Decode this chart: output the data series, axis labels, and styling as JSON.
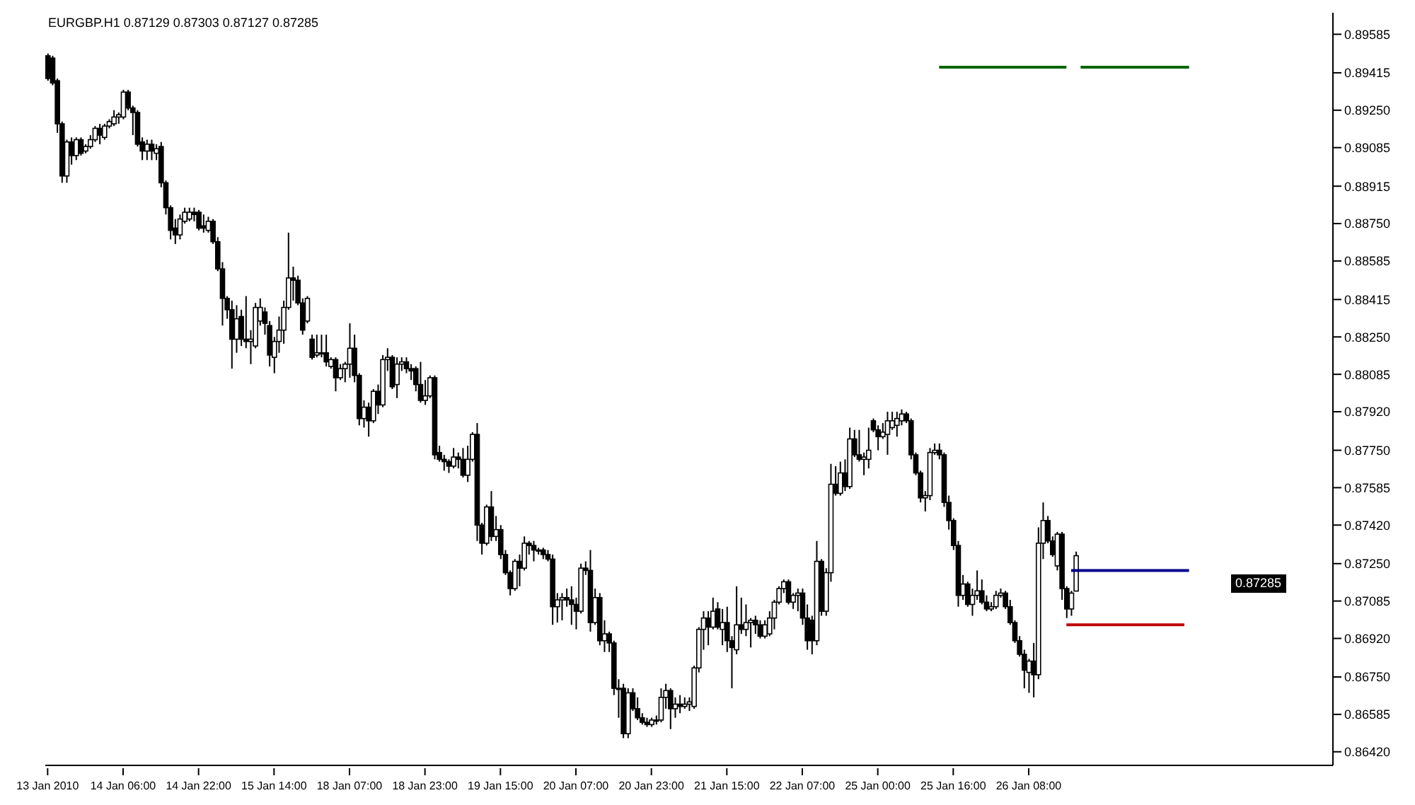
{
  "chart_data": {
    "type": "candlestick",
    "title": "EURGBP.H1 0.87129 0.87303 0.87127 0.87285",
    "color": "#000000",
    "categories": [
      "13 Jan 2010",
      null,
      null,
      null,
      null,
      null,
      null,
      null,
      null,
      null,
      null,
      null,
      null,
      null,
      null,
      null,
      "14 Jan 06:00",
      null,
      null,
      null,
      null,
      null,
      null,
      null,
      null,
      null,
      null,
      null,
      null,
      null,
      null,
      null,
      "14 Jan 22:00",
      null,
      null,
      null,
      null,
      null,
      null,
      null,
      null,
      null,
      null,
      null,
      null,
      null,
      null,
      null,
      "15 Jan 14:00",
      null,
      null,
      null,
      null,
      null,
      null,
      null,
      null,
      null,
      null,
      null,
      null,
      null,
      null,
      null,
      "18 Jan 07:00",
      null,
      null,
      null,
      null,
      null,
      null,
      null,
      null,
      null,
      null,
      null,
      null,
      null,
      null,
      null,
      "18 Jan 23:00",
      null,
      null,
      null,
      null,
      null,
      null,
      null,
      null,
      null,
      null,
      null,
      null,
      null,
      null,
      null,
      "19 Jan 15:00",
      null,
      null,
      null,
      null,
      null,
      null,
      null,
      null,
      null,
      null,
      null,
      null,
      null,
      null,
      null,
      "20 Jan 07:00",
      null,
      null,
      null,
      null,
      null,
      null,
      null,
      null,
      null,
      null,
      null,
      null,
      null,
      null,
      null,
      "20 Jan 23:00",
      null,
      null,
      null,
      null,
      null,
      null,
      null,
      null,
      null,
      null,
      null,
      null,
      null,
      null,
      null,
      "21 Jan 15:00",
      null,
      null,
      null,
      null,
      null,
      null,
      null,
      null,
      null,
      null,
      null,
      null,
      null,
      null,
      null,
      "22 Jan 07:00",
      null,
      null,
      null,
      null,
      null,
      null,
      null,
      null,
      null,
      null,
      null,
      null,
      null,
      null,
      null,
      "25 Jan 00:00",
      null,
      null,
      null,
      null,
      null,
      null,
      null,
      null,
      null,
      null,
      null,
      null,
      null,
      null,
      null,
      "25 Jan 16:00",
      null,
      null,
      null,
      null,
      null,
      null,
      null,
      null,
      null,
      null,
      null,
      null,
      null,
      null,
      null,
      "26 Jan 08:00",
      null,
      null,
      null,
      null,
      null,
      null,
      null,
      null,
      null,
      null,
      null,
      null,
      null,
      null,
      null,
      null,
      null,
      null,
      null,
      null,
      null,
      null,
      null,
      null,
      null,
      null,
      null,
      null,
      null,
      null,
      null,
      null,
      null,
      null,
      null,
      null,
      null,
      null,
      null,
      null,
      null,
      null,
      null,
      null,
      null,
      null,
      null,
      null,
      null,
      null,
      null,
      null,
      null,
      null,
      null,
      null,
      null,
      null,
      null,
      null,
      null,
      null,
      null,
      null
    ],
    "ohlc": [
      [
        0.8949,
        0.895,
        0.8938,
        0.8939
      ],
      [
        0.8948,
        0.8949,
        0.8936,
        0.8937
      ],
      [
        0.8938,
        0.8939,
        0.8915,
        0.8919
      ],
      [
        0.8919,
        0.892,
        0.8893,
        0.8896
      ],
      [
        0.8896,
        0.8912,
        0.8893,
        0.8911
      ],
      [
        0.8911,
        0.8913,
        0.8901,
        0.8905
      ],
      [
        0.8905,
        0.8913,
        0.8903,
        0.8912
      ],
      [
        0.8912,
        0.8913,
        0.8905,
        0.8906
      ],
      [
        0.8907,
        0.891,
        0.8906,
        0.8909
      ],
      [
        0.8909,
        0.8914,
        0.8908,
        0.8912
      ],
      [
        0.8912,
        0.8918,
        0.8911,
        0.8917
      ],
      [
        0.8917,
        0.8919,
        0.891,
        0.8914
      ],
      [
        0.8913,
        0.8919,
        0.8912,
        0.8918
      ],
      [
        0.8918,
        0.8921,
        0.8917,
        0.892
      ],
      [
        0.8919,
        0.8925,
        0.8918,
        0.8922
      ],
      [
        0.8922,
        0.8924,
        0.8919,
        0.8923
      ],
      [
        0.8922,
        0.8934,
        0.8921,
        0.8933
      ],
      [
        0.8933,
        0.8934,
        0.8925,
        0.8926
      ],
      [
        0.8926,
        0.8927,
        0.8914,
        0.8924
      ],
      [
        0.8924,
        0.8925,
        0.8909,
        0.891
      ],
      [
        0.8911,
        0.8913,
        0.8903,
        0.8907
      ],
      [
        0.8907,
        0.8912,
        0.8903,
        0.891
      ],
      [
        0.891,
        0.8912,
        0.8903,
        0.8907
      ],
      [
        0.8906,
        0.891,
        0.8903,
        0.8908
      ],
      [
        0.8909,
        0.8911,
        0.8891,
        0.8893
      ],
      [
        0.8893,
        0.8894,
        0.8879,
        0.8882
      ],
      [
        0.8882,
        0.8883,
        0.8868,
        0.8872
      ],
      [
        0.8873,
        0.8877,
        0.8866,
        0.887
      ],
      [
        0.887,
        0.8879,
        0.8868,
        0.8877
      ],
      [
        0.8876,
        0.8882,
        0.8875,
        0.888
      ],
      [
        0.8877,
        0.8882,
        0.8876,
        0.888
      ],
      [
        0.888,
        0.8882,
        0.8876,
        0.8879
      ],
      [
        0.888,
        0.8881,
        0.8872,
        0.8873
      ],
      [
        0.8874,
        0.8879,
        0.8871,
        0.8873
      ],
      [
        0.8872,
        0.8878,
        0.8871,
        0.8876
      ],
      [
        0.8876,
        0.8877,
        0.8866,
        0.8867
      ],
      [
        0.8867,
        0.8869,
        0.8854,
        0.8855
      ],
      [
        0.8855,
        0.8858,
        0.883,
        0.8842
      ],
      [
        0.8842,
        0.8843,
        0.8833,
        0.8837
      ],
      [
        0.8837,
        0.8841,
        0.8811,
        0.8824
      ],
      [
        0.8824,
        0.8839,
        0.8818,
        0.8833
      ],
      [
        0.8834,
        0.8837,
        0.8821,
        0.8824
      ],
      [
        0.8824,
        0.8843,
        0.882,
        0.8823
      ],
      [
        0.8823,
        0.8828,
        0.8813,
        0.8824
      ],
      [
        0.8821,
        0.884,
        0.882,
        0.8838
      ],
      [
        0.8832,
        0.8842,
        0.883,
        0.8838
      ],
      [
        0.8836,
        0.8838,
        0.8826,
        0.8831
      ],
      [
        0.883,
        0.8832,
        0.8812,
        0.8817
      ],
      [
        0.8816,
        0.8825,
        0.8809,
        0.8823
      ],
      [
        0.8823,
        0.8834,
        0.8818,
        0.8828
      ],
      [
        0.8828,
        0.8841,
        0.8822,
        0.8838
      ],
      [
        0.8838,
        0.8871,
        0.8837,
        0.8851
      ],
      [
        0.8851,
        0.8856,
        0.8841,
        0.885
      ],
      [
        0.885,
        0.8852,
        0.8839,
        0.884
      ],
      [
        0.884,
        0.8842,
        0.8826,
        0.8828
      ],
      [
        0.8832,
        0.8843,
        0.8831,
        0.8842
      ],
      [
        0.8824,
        0.8826,
        0.8815,
        0.8816
      ],
      [
        0.8817,
        0.8826,
        0.8816,
        0.8818
      ],
      [
        0.8818,
        0.8826,
        0.8816,
        0.8818
      ],
      [
        0.8818,
        0.8826,
        0.8812,
        0.8814
      ],
      [
        0.8812,
        0.8816,
        0.8811,
        0.8815
      ],
      [
        0.8815,
        0.8816,
        0.8801,
        0.8807
      ],
      [
        0.8807,
        0.8813,
        0.8806,
        0.8811
      ],
      [
        0.8811,
        0.8814,
        0.8805,
        0.8813
      ],
      [
        0.8813,
        0.8831,
        0.8807,
        0.882
      ],
      [
        0.882,
        0.8826,
        0.8805,
        0.8808
      ],
      [
        0.8808,
        0.8809,
        0.8786,
        0.8789
      ],
      [
        0.8789,
        0.8797,
        0.8785,
        0.8794
      ],
      [
        0.8794,
        0.8796,
        0.8781,
        0.8788
      ],
      [
        0.8788,
        0.8802,
        0.8787,
        0.8801
      ],
      [
        0.8801,
        0.8804,
        0.8791,
        0.8795
      ],
      [
        0.8795,
        0.8817,
        0.8794,
        0.8815
      ],
      [
        0.8815,
        0.882,
        0.881,
        0.8816
      ],
      [
        0.8816,
        0.8817,
        0.8802,
        0.8803
      ],
      [
        0.8804,
        0.8816,
        0.8798,
        0.8813
      ],
      [
        0.8813,
        0.8816,
        0.881,
        0.8814
      ],
      [
        0.8814,
        0.8816,
        0.8809,
        0.8811
      ],
      [
        0.8811,
        0.8813,
        0.8806,
        0.881
      ],
      [
        0.8811,
        0.8812,
        0.8801,
        0.8804
      ],
      [
        0.8804,
        0.8814,
        0.8796,
        0.8797
      ],
      [
        0.8797,
        0.8806,
        0.8795,
        0.8799
      ],
      [
        0.8799,
        0.8808,
        0.8798,
        0.8807
      ],
      [
        0.8807,
        0.8808,
        0.8771,
        0.8773
      ],
      [
        0.8774,
        0.8777,
        0.877,
        0.8771
      ],
      [
        0.8771,
        0.8773,
        0.8766,
        0.877
      ],
      [
        0.877,
        0.8771,
        0.8765,
        0.8768
      ],
      [
        0.8768,
        0.8776,
        0.8767,
        0.8772
      ],
      [
        0.8772,
        0.8774,
        0.8767,
        0.8771
      ],
      [
        0.8771,
        0.8776,
        0.8763,
        0.8764
      ],
      [
        0.8764,
        0.8777,
        0.8761,
        0.8771
      ],
      [
        0.8771,
        0.8783,
        0.877,
        0.8782
      ],
      [
        0.8782,
        0.8787,
        0.8735,
        0.8742
      ],
      [
        0.8742,
        0.8743,
        0.8729,
        0.8734
      ],
      [
        0.8734,
        0.8751,
        0.8733,
        0.875
      ],
      [
        0.875,
        0.8757,
        0.8735,
        0.8737
      ],
      [
        0.8737,
        0.8746,
        0.8735,
        0.874
      ],
      [
        0.874,
        0.8742,
        0.8727,
        0.8729
      ],
      [
        0.8729,
        0.8731,
        0.872,
        0.8721
      ],
      [
        0.8721,
        0.8722,
        0.8711,
        0.8714
      ],
      [
        0.8714,
        0.8727,
        0.8713,
        0.8726
      ],
      [
        0.8726,
        0.8729,
        0.8715,
        0.8723
      ],
      [
        0.8723,
        0.8737,
        0.8722,
        0.8734
      ],
      [
        0.8734,
        0.8735,
        0.8729,
        0.8733
      ],
      [
        0.8733,
        0.8735,
        0.8726,
        0.8731
      ],
      [
        0.8731,
        0.8732,
        0.8729,
        0.8731
      ],
      [
        0.8731,
        0.8732,
        0.8727,
        0.8729
      ],
      [
        0.8729,
        0.8731,
        0.8726,
        0.8727
      ],
      [
        0.8727,
        0.8729,
        0.8698,
        0.8706
      ],
      [
        0.8706,
        0.8712,
        0.8699,
        0.8709
      ],
      [
        0.8709,
        0.8712,
        0.87,
        0.871
      ],
      [
        0.871,
        0.8714,
        0.8706,
        0.8709
      ],
      [
        0.8709,
        0.8715,
        0.8698,
        0.8707
      ],
      [
        0.8707,
        0.871,
        0.8696,
        0.8704
      ],
      [
        0.8704,
        0.8725,
        0.8703,
        0.8723
      ],
      [
        0.8723,
        0.8726,
        0.872,
        0.8722
      ],
      [
        0.8722,
        0.8731,
        0.8695,
        0.8699
      ],
      [
        0.8699,
        0.8714,
        0.8698,
        0.871
      ],
      [
        0.871,
        0.8712,
        0.8689,
        0.8691
      ],
      [
        0.8691,
        0.87,
        0.8686,
        0.8694
      ],
      [
        0.8694,
        0.8695,
        0.8686,
        0.869
      ],
      [
        0.869,
        0.8691,
        0.8667,
        0.867
      ],
      [
        0.867,
        0.8674,
        0.8657,
        0.867
      ],
      [
        0.867,
        0.8672,
        0.8648,
        0.865
      ],
      [
        0.865,
        0.867,
        0.8648,
        0.8668
      ],
      [
        0.8668,
        0.867,
        0.866,
        0.8661
      ],
      [
        0.8661,
        0.8666,
        0.8656,
        0.8657
      ],
      [
        0.8657,
        0.8659,
        0.8654,
        0.8655
      ],
      [
        0.8655,
        0.8657,
        0.8653,
        0.8654
      ],
      [
        0.8654,
        0.8657,
        0.8653,
        0.8656
      ],
      [
        0.8656,
        0.8658,
        0.8654,
        0.8656
      ],
      [
        0.8656,
        0.867,
        0.8655,
        0.8666
      ],
      [
        0.8666,
        0.8672,
        0.8661,
        0.8669
      ],
      [
        0.8669,
        0.867,
        0.8652,
        0.8661
      ],
      [
        0.8661,
        0.8666,
        0.8657,
        0.8663
      ],
      [
        0.8663,
        0.8667,
        0.8659,
        0.8662
      ],
      [
        0.8662,
        0.8666,
        0.8661,
        0.8663
      ],
      [
        0.8663,
        0.8666,
        0.866,
        0.8664
      ],
      [
        0.8662,
        0.868,
        0.8661,
        0.8679
      ],
      [
        0.8679,
        0.8697,
        0.8677,
        0.8696
      ],
      [
        0.8696,
        0.8704,
        0.8687,
        0.8701
      ],
      [
        0.8701,
        0.8704,
        0.8689,
        0.8697
      ],
      [
        0.8697,
        0.871,
        0.8696,
        0.8704
      ],
      [
        0.8705,
        0.8708,
        0.8696,
        0.8697
      ],
      [
        0.8696,
        0.8705,
        0.8689,
        0.8699
      ],
      [
        0.8699,
        0.8706,
        0.8686,
        0.8691
      ],
      [
        0.8691,
        0.8693,
        0.867,
        0.8688
      ],
      [
        0.8687,
        0.8715,
        0.8685,
        0.8698
      ],
      [
        0.8698,
        0.871,
        0.8694,
        0.8696
      ],
      [
        0.8696,
        0.8707,
        0.8693,
        0.8699
      ],
      [
        0.8699,
        0.8701,
        0.8688,
        0.87
      ],
      [
        0.87,
        0.8702,
        0.8694,
        0.8698
      ],
      [
        0.8698,
        0.87,
        0.8692,
        0.8693
      ],
      [
        0.8693,
        0.87,
        0.8692,
        0.8698
      ],
      [
        0.8694,
        0.8704,
        0.8693,
        0.8701
      ],
      [
        0.8701,
        0.8709,
        0.8696,
        0.8708
      ],
      [
        0.8708,
        0.8715,
        0.8707,
        0.8714
      ],
      [
        0.8714,
        0.8718,
        0.8712,
        0.8717
      ],
      [
        0.8717,
        0.8718,
        0.8707,
        0.8708
      ],
      [
        0.8708,
        0.8712,
        0.8705,
        0.8711
      ],
      [
        0.8711,
        0.8714,
        0.8704,
        0.8712
      ],
      [
        0.8712,
        0.8714,
        0.8698,
        0.8701
      ],
      [
        0.8701,
        0.8707,
        0.8687,
        0.8691
      ],
      [
        0.87,
        0.8702,
        0.8685,
        0.8691
      ],
      [
        0.8691,
        0.8735,
        0.8689,
        0.8726
      ],
      [
        0.8726,
        0.8727,
        0.8702,
        0.8704
      ],
      [
        0.8704,
        0.8723,
        0.8702,
        0.8721
      ],
      [
        0.8721,
        0.8769,
        0.8717,
        0.876
      ],
      [
        0.876,
        0.8768,
        0.8755,
        0.8756
      ],
      [
        0.8756,
        0.877,
        0.8755,
        0.8765
      ],
      [
        0.8765,
        0.8771,
        0.8757,
        0.8759
      ],
      [
        0.8759,
        0.8785,
        0.8758,
        0.878
      ],
      [
        0.878,
        0.8784,
        0.8772,
        0.8773
      ],
      [
        0.8773,
        0.8784,
        0.877,
        0.8771
      ],
      [
        0.8771,
        0.8774,
        0.8764,
        0.8772
      ],
      [
        0.8771,
        0.8785,
        0.8767,
        0.8775
      ],
      [
        0.8788,
        0.8789,
        0.8783,
        0.8784
      ],
      [
        0.8784,
        0.8786,
        0.8775,
        0.8781
      ],
      [
        0.8781,
        0.8787,
        0.878,
        0.8783
      ],
      [
        0.8782,
        0.8792,
        0.8773,
        0.8788
      ],
      [
        0.8785,
        0.8792,
        0.8784,
        0.8788
      ],
      [
        0.8786,
        0.8792,
        0.8781,
        0.8789
      ],
      [
        0.8788,
        0.8793,
        0.8786,
        0.8791
      ],
      [
        0.8791,
        0.8792,
        0.8787,
        0.8788
      ],
      [
        0.8788,
        0.8789,
        0.8771,
        0.8773
      ],
      [
        0.8773,
        0.8774,
        0.8764,
        0.8765
      ],
      [
        0.8765,
        0.8766,
        0.8752,
        0.8754
      ],
      [
        0.8754,
        0.8757,
        0.8748,
        0.8755
      ],
      [
        0.8755,
        0.8776,
        0.8753,
        0.8774
      ],
      [
        0.8774,
        0.8778,
        0.8773,
        0.8775
      ],
      [
        0.8775,
        0.8778,
        0.8771,
        0.8773
      ],
      [
        0.8773,
        0.8774,
        0.875,
        0.8752
      ],
      [
        0.8752,
        0.8755,
        0.874,
        0.8744
      ],
      [
        0.8744,
        0.8745,
        0.8731,
        0.8733
      ],
      [
        0.8733,
        0.8735,
        0.8706,
        0.8711
      ],
      [
        0.8711,
        0.872,
        0.8709,
        0.8716
      ],
      [
        0.8716,
        0.8717,
        0.8706,
        0.8707
      ],
      [
        0.8707,
        0.8714,
        0.8702,
        0.8711
      ],
      [
        0.8711,
        0.8722,
        0.8709,
        0.8713
      ],
      [
        0.8713,
        0.8718,
        0.8707,
        0.8708
      ],
      [
        0.8708,
        0.8711,
        0.8704,
        0.8705
      ],
      [
        0.8705,
        0.8708,
        0.8704,
        0.8706
      ],
      [
        0.8706,
        0.8713,
        0.8705,
        0.8711
      ],
      [
        0.8711,
        0.8714,
        0.871,
        0.8712
      ],
      [
        0.8712,
        0.8713,
        0.8705,
        0.8706
      ],
      [
        0.8706,
        0.8709,
        0.8698,
        0.8699
      ],
      [
        0.8699,
        0.87,
        0.869,
        0.8691
      ],
      [
        0.8691,
        0.8693,
        0.8684,
        0.8685
      ],
      [
        0.8685,
        0.8687,
        0.867,
        0.8678
      ],
      [
        0.8677,
        0.8683,
        0.8668,
        0.8682
      ],
      [
        0.8682,
        0.869,
        0.8666,
        0.8676
      ],
      [
        0.8676,
        0.8741,
        0.8674,
        0.8734
      ],
      [
        0.8734,
        0.8752,
        0.8727,
        0.8744
      ],
      [
        0.8744,
        0.8746,
        0.8734,
        0.8735
      ],
      [
        0.8735,
        0.8737,
        0.8728,
        0.8729
      ],
      [
        0.8724,
        0.8739,
        0.8722,
        0.8738
      ],
      [
        0.8738,
        0.8739,
        0.8709,
        0.8714
      ],
      [
        0.8714,
        0.8715,
        0.8701,
        0.8705
      ],
      [
        0.8705,
        0.8713,
        0.8702,
        0.8712
      ],
      [
        0.87129,
        0.87303,
        0.87127,
        0.87285
      ],
      null,
      null,
      null,
      null,
      null,
      null,
      null,
      null,
      null,
      null,
      null,
      null,
      null,
      null,
      null,
      null,
      null,
      null,
      null,
      null,
      null,
      null,
      null,
      null,
      null,
      null,
      null,
      null,
      null,
      null,
      null,
      null,
      null,
      null,
      null,
      null,
      null,
      null,
      null,
      null,
      null,
      null,
      null,
      null,
      null,
      null,
      null,
      null,
      null,
      null,
      null,
      null,
      null,
      null
    ],
    "series": [
      {
        "type": "line",
        "color": "#006400",
        "values": [
          null,
          null,
          null,
          null,
          null,
          null,
          null,
          null,
          null,
          null,
          null,
          null,
          null,
          null,
          null,
          null,
          null,
          null,
          null,
          null,
          null,
          null,
          null,
          null,
          null,
          null,
          null,
          null,
          null,
          null,
          null,
          null,
          null,
          null,
          null,
          null,
          null,
          null,
          null,
          null,
          null,
          null,
          null,
          null,
          null,
          null,
          null,
          null,
          null,
          null,
          null,
          null,
          null,
          null,
          null,
          null,
          null,
          null,
          null,
          null,
          null,
          null,
          null,
          null,
          null,
          null,
          null,
          null,
          null,
          null,
          null,
          null,
          null,
          null,
          null,
          null,
          null,
          null,
          null,
          null,
          null,
          null,
          null,
          null,
          null,
          null,
          null,
          null,
          null,
          null,
          null,
          null,
          null,
          null,
          null,
          null,
          null,
          null,
          null,
          null,
          null,
          null,
          null,
          null,
          null,
          null,
          null,
          null,
          null,
          null,
          null,
          null,
          null,
          null,
          null,
          null,
          null,
          null,
          null,
          null,
          null,
          null,
          null,
          null,
          null,
          null,
          null,
          null,
          null,
          null,
          null,
          null,
          null,
          null,
          null,
          null,
          null,
          null,
          null,
          null,
          null,
          null,
          null,
          null,
          null,
          null,
          null,
          null,
          null,
          null,
          null,
          null,
          null,
          null,
          null,
          null,
          null,
          null,
          null,
          null,
          null,
          null,
          null,
          null,
          null,
          null,
          null,
          null,
          null,
          null,
          null,
          null,
          null,
          null,
          null,
          null,
          null,
          null,
          null,
          null,
          null,
          null,
          null,
          null,
          null,
          null,
          null,
          null,
          null,
          0.8944,
          0.8944,
          0.8944,
          0.8944,
          0.8944,
          0.8944,
          0.8944,
          0.8944,
          0.8944,
          0.8944,
          0.8944,
          0.8944,
          0.8944,
          0.8944,
          0.8944,
          0.8944,
          0.8944,
          0.8944,
          0.8944,
          0.8944,
          0.8944,
          0.8944,
          0.8944,
          0.8944,
          0.8944,
          0.8944,
          0.8944,
          0.8944,
          null,
          null,
          0.8944,
          0.8944,
          0.8944,
          0.8944,
          0.8944,
          0.8944,
          0.8944,
          0.8944,
          0.8944,
          0.8944,
          0.8944,
          0.8944,
          0.8944,
          0.8944,
          0.8944,
          0.8944,
          0.8944,
          0.8944,
          0.8944,
          0.8944,
          0.8944,
          0.8944,
          0.8944,
          0.8944,
          null,
          null,
          null,
          null,
          null,
          null,
          null,
          null,
          null,
          null,
          null,
          null,
          null,
          null,
          null,
          null,
          null,
          null,
          null,
          null,
          null,
          null,
          null,
          null,
          null,
          null,
          null,
          null,
          null,
          null
        ]
      },
      {
        "type": "line",
        "color": "#00008b",
        "values": [
          null,
          null,
          null,
          null,
          null,
          null,
          null,
          null,
          null,
          null,
          null,
          null,
          null,
          null,
          null,
          null,
          null,
          null,
          null,
          null,
          null,
          null,
          null,
          null,
          null,
          null,
          null,
          null,
          null,
          null,
          null,
          null,
          null,
          null,
          null,
          null,
          null,
          null,
          null,
          null,
          null,
          null,
          null,
          null,
          null,
          null,
          null,
          null,
          null,
          null,
          null,
          null,
          null,
          null,
          null,
          null,
          null,
          null,
          null,
          null,
          null,
          null,
          null,
          null,
          null,
          null,
          null,
          null,
          null,
          null,
          null,
          null,
          null,
          null,
          null,
          null,
          null,
          null,
          null,
          null,
          null,
          null,
          null,
          null,
          null,
          null,
          null,
          null,
          null,
          null,
          null,
          null,
          null,
          null,
          null,
          null,
          null,
          null,
          null,
          null,
          null,
          null,
          null,
          null,
          null,
          null,
          null,
          null,
          null,
          null,
          null,
          null,
          null,
          null,
          null,
          null,
          null,
          null,
          null,
          null,
          null,
          null,
          null,
          null,
          null,
          null,
          null,
          null,
          null,
          null,
          null,
          null,
          null,
          null,
          null,
          null,
          null,
          null,
          null,
          null,
          null,
          null,
          null,
          null,
          null,
          null,
          null,
          null,
          null,
          null,
          null,
          null,
          null,
          null,
          null,
          null,
          null,
          null,
          null,
          null,
          null,
          null,
          null,
          null,
          null,
          null,
          null,
          null,
          null,
          null,
          null,
          null,
          null,
          null,
          null,
          null,
          null,
          null,
          null,
          null,
          null,
          null,
          null,
          null,
          null,
          null,
          null,
          null,
          null,
          null,
          null,
          null,
          null,
          null,
          null,
          null,
          null,
          null,
          null,
          null,
          null,
          null,
          null,
          null,
          null,
          null,
          null,
          null,
          null,
          null,
          null,
          null,
          null,
          null,
          null,
          null,
          null,
          0.8722,
          0.8722,
          0.8722,
          0.8722,
          0.8722,
          0.8722,
          0.8722,
          0.8722,
          0.8722,
          0.8722,
          0.8722,
          0.8722,
          0.8722,
          0.8722,
          0.8722,
          0.8722,
          0.8722,
          0.8722,
          0.8722,
          0.8722,
          0.8722,
          0.8722,
          0.8722,
          0.8722,
          0.8722,
          0.8722,
          null,
          null,
          null,
          null,
          null,
          null,
          null,
          null,
          null,
          null,
          null,
          null,
          null,
          null,
          null,
          null,
          null,
          null,
          null,
          null,
          null,
          null,
          null,
          null,
          null,
          null,
          null,
          null,
          null,
          null
        ]
      },
      {
        "type": "line",
        "color": "#c00000",
        "values": [
          null,
          null,
          null,
          null,
          null,
          null,
          null,
          null,
          null,
          null,
          null,
          null,
          null,
          null,
          null,
          null,
          null,
          null,
          null,
          null,
          null,
          null,
          null,
          null,
          null,
          null,
          null,
          null,
          null,
          null,
          null,
          null,
          null,
          null,
          null,
          null,
          null,
          null,
          null,
          null,
          null,
          null,
          null,
          null,
          null,
          null,
          null,
          null,
          null,
          null,
          null,
          null,
          null,
          null,
          null,
          null,
          null,
          null,
          null,
          null,
          null,
          null,
          null,
          null,
          null,
          null,
          null,
          null,
          null,
          null,
          null,
          null,
          null,
          null,
          null,
          null,
          null,
          null,
          null,
          null,
          null,
          null,
          null,
          null,
          null,
          null,
          null,
          null,
          null,
          null,
          null,
          null,
          null,
          null,
          null,
          null,
          null,
          null,
          null,
          null,
          null,
          null,
          null,
          null,
          null,
          null,
          null,
          null,
          null,
          null,
          null,
          null,
          null,
          null,
          null,
          null,
          null,
          null,
          null,
          null,
          null,
          null,
          null,
          null,
          null,
          null,
          null,
          null,
          null,
          null,
          null,
          null,
          null,
          null,
          null,
          null,
          null,
          null,
          null,
          null,
          null,
          null,
          null,
          null,
          null,
          null,
          null,
          null,
          null,
          null,
          null,
          null,
          null,
          null,
          null,
          null,
          null,
          null,
          null,
          null,
          null,
          null,
          null,
          null,
          null,
          null,
          null,
          null,
          null,
          null,
          null,
          null,
          null,
          null,
          null,
          null,
          null,
          null,
          null,
          null,
          null,
          null,
          null,
          null,
          null,
          null,
          null,
          null,
          null,
          null,
          null,
          null,
          null,
          null,
          null,
          null,
          null,
          null,
          null,
          null,
          null,
          null,
          null,
          null,
          null,
          null,
          null,
          null,
          null,
          null,
          null,
          null,
          null,
          null,
          null,
          null,
          0.8698,
          0.8698,
          0.8698,
          0.8698,
          0.8698,
          0.8698,
          0.8698,
          0.8698,
          0.8698,
          0.8698,
          0.8698,
          0.8698,
          0.8698,
          0.8698,
          0.8698,
          0.8698,
          0.8698,
          0.8698,
          0.8698,
          0.8698,
          0.8698,
          0.8698,
          0.8698,
          0.8698,
          0.8698,
          0.8698,
          null,
          null,
          null,
          null,
          null,
          null,
          null,
          null,
          null,
          null,
          null,
          null,
          null,
          null,
          null,
          null,
          null,
          null,
          null,
          null,
          null,
          null,
          null,
          null,
          null,
          null,
          null,
          null,
          null,
          null,
          null
        ]
      }
    ],
    "ylim": [
      0.8636,
      0.8968
    ],
    "yticks": [
      0.89585,
      0.89415,
      {
        "value": 0.8925,
        "label": "0.89250"
      },
      0.89085,
      0.88915,
      {
        "value": 0.8875,
        "label": "0.88750"
      },
      0.88585,
      0.88415,
      {
        "value": 0.8825,
        "label": "0.88250"
      },
      0.88085,
      {
        "value": 0.8792,
        "label": "0.87920"
      },
      {
        "value": 0.8775,
        "label": "0.87750"
      },
      0.87585,
      {
        "value": 0.8742,
        "label": "0.87420"
      },
      {
        "value": 0.8725,
        "label": "0.87250"
      },
      0.87085,
      {
        "value": 0.8692,
        "label": "0.86920"
      },
      {
        "value": 0.8675,
        "label": "0.86750"
      },
      0.86585,
      {
        "value": 0.8642,
        "label": "0.86420"
      }
    ],
    "annotations": [
      "0.87285"
    ]
  }
}
